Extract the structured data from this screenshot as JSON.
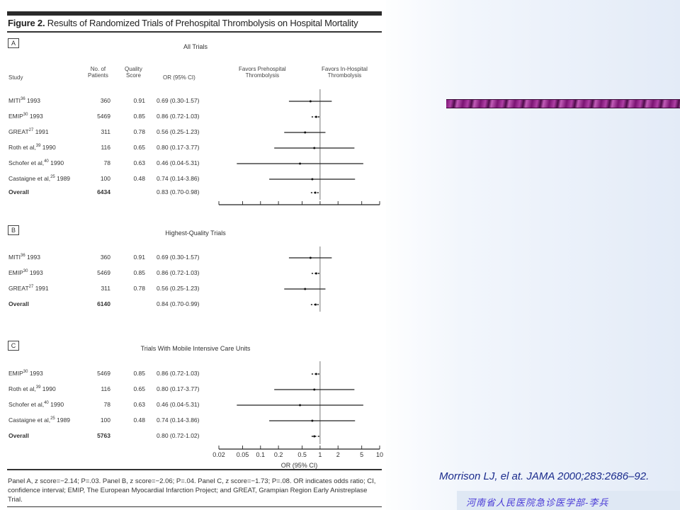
{
  "figure": {
    "title_bold": "Figure 2.",
    "title_rest": " Results of Randomized Trials of Prehospital Thrombolysis on Hospital Mortality",
    "headers": {
      "study": "Study",
      "patients": [
        "No. of",
        "Patients"
      ],
      "quality": [
        "Quality",
        "Score"
      ],
      "or": "OR (95% CI)",
      "favors_left": [
        "Favors Prehospital",
        "Thrombolysis"
      ],
      "favors_right": [
        "Favors In-Hospital",
        "Thrombolysis"
      ]
    },
    "panels": [
      {
        "letter": "A",
        "title": "All Trials",
        "rows": [
          {
            "study": "MITI",
            "ref": "36",
            "year": " 1993",
            "patients": "360",
            "quality": "0.91",
            "or_text": "0.69 (0.30-1.57)",
            "or": 0.69,
            "lo": 0.3,
            "hi": 1.57
          },
          {
            "study": "EMIP",
            "ref": "30",
            "year": " 1993",
            "patients": "5469",
            "quality": "0.85",
            "or_text": "0.86 (0.72-1.03)",
            "or": 0.86,
            "lo": 0.72,
            "hi": 1.03
          },
          {
            "study": "GREAT",
            "ref": "27",
            "year": " 1991",
            "patients": "311",
            "quality": "0.78",
            "or_text": "0.56 (0.25-1.23)",
            "or": 0.56,
            "lo": 0.25,
            "hi": 1.23
          },
          {
            "study": "Roth et al,",
            "ref": "39",
            "year": " 1990",
            "patients": "116",
            "quality": "0.65",
            "or_text": "0.80 (0.17-3.77)",
            "or": 0.8,
            "lo": 0.17,
            "hi": 3.77
          },
          {
            "study": "Schofer et al,",
            "ref": "40",
            "year": " 1990",
            "patients": "78",
            "quality": "0.63",
            "or_text": "0.46 (0.04-5.31)",
            "or": 0.46,
            "lo": 0.04,
            "hi": 5.31
          },
          {
            "study": "Castaigne et al,",
            "ref": "25",
            "year": " 1989",
            "patients": "100",
            "quality": "0.48",
            "or_text": "0.74 (0.14-3.86)",
            "or": 0.74,
            "lo": 0.14,
            "hi": 3.86
          }
        ],
        "overall": {
          "label": "Overall",
          "patients": "6434",
          "or_text": "0.83 (0.70-0.98)",
          "or": 0.83,
          "lo": 0.7,
          "hi": 0.98
        }
      },
      {
        "letter": "B",
        "title": "Highest-Quality Trials",
        "rows": [
          {
            "study": "MITI",
            "ref": "36",
            "year": " 1993",
            "patients": "360",
            "quality": "0.91",
            "or_text": "0.69 (0.30-1.57)",
            "or": 0.69,
            "lo": 0.3,
            "hi": 1.57
          },
          {
            "study": "EMIP",
            "ref": "30",
            "year": " 1993",
            "patients": "5469",
            "quality": "0.85",
            "or_text": "0.86 (0.72-1.03)",
            "or": 0.86,
            "lo": 0.72,
            "hi": 1.03
          },
          {
            "study": "GREAT",
            "ref": "27",
            "year": " 1991",
            "patients": "311",
            "quality": "0.78",
            "or_text": "0.56 (0.25-1.23)",
            "or": 0.56,
            "lo": 0.25,
            "hi": 1.23
          }
        ],
        "overall": {
          "label": "Overall",
          "patients": "6140",
          "or_text": "0.84 (0.70-0.99)",
          "or": 0.84,
          "lo": 0.7,
          "hi": 0.99
        }
      },
      {
        "letter": "C",
        "title": "Trials With Mobile Intensive Care Units",
        "rows": [
          {
            "study": "EMIP",
            "ref": "30",
            "year": " 1993",
            "patients": "5469",
            "quality": "0.85",
            "or_text": "0.86 (0.72-1.03)",
            "or": 0.86,
            "lo": 0.72,
            "hi": 1.03
          },
          {
            "study": "Roth et al,",
            "ref": "39",
            "year": " 1990",
            "patients": "116",
            "quality": "0.65",
            "or_text": "0.80 (0.17-3.77)",
            "or": 0.8,
            "lo": 0.17,
            "hi": 3.77
          },
          {
            "study": "Schofer et al,",
            "ref": "40",
            "year": " 1990",
            "patients": "78",
            "quality": "0.63",
            "or_text": "0.46 (0.04-5.31)",
            "or": 0.46,
            "lo": 0.04,
            "hi": 5.31
          },
          {
            "study": "Castaigne et al,",
            "ref": "25",
            "year": " 1989",
            "patients": "100",
            "quality": "0.48",
            "or_text": "0.74 (0.14-3.86)",
            "or": 0.74,
            "lo": 0.14,
            "hi": 3.86
          }
        ],
        "overall": {
          "label": "Overall",
          "patients": "5763",
          "or_text": "0.80 (0.72-1.02)",
          "or": 0.8,
          "lo": 0.72,
          "hi": 1.02
        }
      }
    ],
    "axis": {
      "label": "OR (95% CI)",
      "scale": "log",
      "range": [
        0.02,
        10
      ],
      "ticks": [
        0.02,
        0.05,
        0.1,
        0.2,
        0.5,
        1,
        2,
        5,
        10
      ],
      "tick_labels": [
        "0.02",
        "0.05",
        "0.1",
        "0.2",
        "0.5",
        "1",
        "2",
        "5",
        "10"
      ],
      "reference_line": 1
    },
    "footnote": "Panel A, z score=−2.14; P=.03. Panel B, z score=−2.06; P=.04. Panel C, z score=−1.73; P=.08. OR indicates odds ratio; CI, confidence interval; EMIP, The European Myocardial Infarction Project; and GREAT, Grampian Region Early Anistreplase Trial."
  },
  "citation": "Morrison LJ,  el at. JAMA 2000;283:2686–92.",
  "author": "河南省人民医院急诊医学部-李兵",
  "colors": {
    "citation": "#1a2b8c",
    "author": "#4a3bd6",
    "deco_band": "#7a1572"
  }
}
